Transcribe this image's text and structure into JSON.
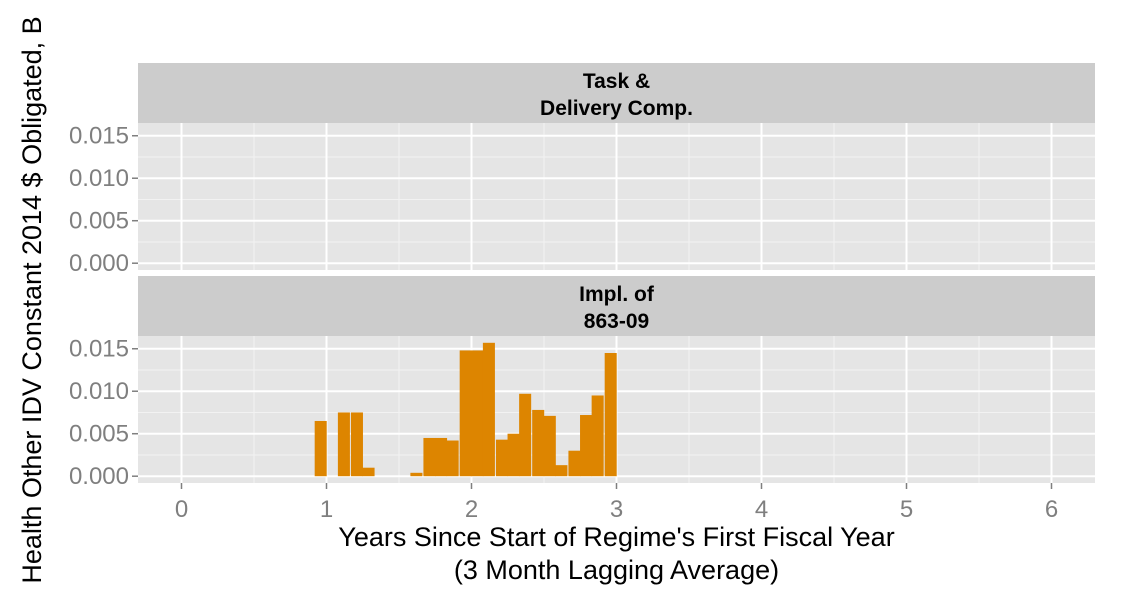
{
  "chart_data": {
    "type": "bar",
    "ylabel": "Health Other IDV Constant 2014 $ Obligated, B",
    "xlabel_line1": "Years Since Start of Regime's First Fiscal Year",
    "xlabel_line2": "(3 Month Lagging Average)",
    "xlim": [
      -0.3,
      6.3
    ],
    "x_ticks": [
      0,
      1,
      2,
      3,
      4,
      5,
      6
    ],
    "x_tick_labels": [
      "0",
      "1",
      "2",
      "3",
      "4",
      "5",
      "6"
    ],
    "ylim": [
      -0.0008,
      0.0165
    ],
    "y_ticks": [
      0.0,
      0.005,
      0.01,
      0.015
    ],
    "y_tick_labels": [
      "0.000",
      "0.005",
      "0.010",
      "0.015"
    ],
    "bar_width": 0.083,
    "grid": true,
    "color": "#DD8500",
    "panels": [
      {
        "title_line1": "Task &",
        "title_line2": "Delivery Comp.",
        "bars": []
      },
      {
        "title_line1": "Impl. of",
        "title_line2": "863-09",
        "bars": [
          {
            "x": 0.96,
            "y": 0.0065
          },
          {
            "x": 1.12,
            "y": 0.0075
          },
          {
            "x": 1.21,
            "y": 0.0075
          },
          {
            "x": 1.29,
            "y": 0.001
          },
          {
            "x": 1.62,
            "y": 0.0004
          },
          {
            "x": 1.71,
            "y": 0.0045
          },
          {
            "x": 1.79,
            "y": 0.0045
          },
          {
            "x": 1.87,
            "y": 0.0042
          },
          {
            "x": 1.96,
            "y": 0.0148
          },
          {
            "x": 2.04,
            "y": 0.0148
          },
          {
            "x": 2.12,
            "y": 0.0157
          },
          {
            "x": 2.21,
            "y": 0.0043
          },
          {
            "x": 2.29,
            "y": 0.005
          },
          {
            "x": 2.37,
            "y": 0.0097
          },
          {
            "x": 2.46,
            "y": 0.0078
          },
          {
            "x": 2.54,
            "y": 0.0071
          },
          {
            "x": 2.62,
            "y": 0.0013
          },
          {
            "x": 2.71,
            "y": 0.003
          },
          {
            "x": 2.79,
            "y": 0.0072
          },
          {
            "x": 2.87,
            "y": 0.0095
          },
          {
            "x": 2.96,
            "y": 0.0145
          }
        ]
      }
    ]
  }
}
